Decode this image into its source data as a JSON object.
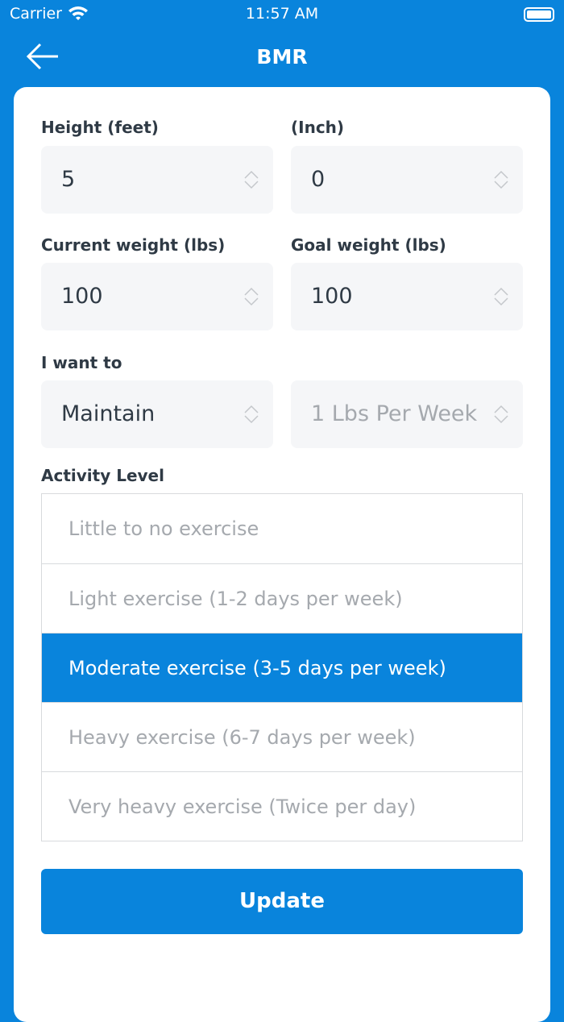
{
  "status": {
    "carrier": "Carrier",
    "time": "11:57 AM"
  },
  "header": {
    "title": "BMR"
  },
  "form": {
    "height_feet": {
      "label": "Height (feet)",
      "value": "5"
    },
    "height_inch": {
      "label": "(Inch)",
      "value": "0"
    },
    "current_weight": {
      "label": "Current weight (lbs)",
      "value": "100"
    },
    "goal_weight": {
      "label": "Goal weight (lbs)",
      "value": "100"
    },
    "goal": {
      "label": "I want to",
      "value": "Maintain"
    },
    "rate": {
      "value": "1 Lbs Per Week"
    },
    "activity": {
      "label": "Activity Level",
      "selected": 2,
      "options": [
        "Little to no exercise",
        "Light exercise (1-2 days per week)",
        "Moderate exercise (3-5 days per week)",
        "Heavy exercise (6-7 days per week)",
        "Very heavy exercise (Twice per day)"
      ]
    }
  },
  "update_label": "Update",
  "colors": {
    "accent": "#0984dc"
  }
}
